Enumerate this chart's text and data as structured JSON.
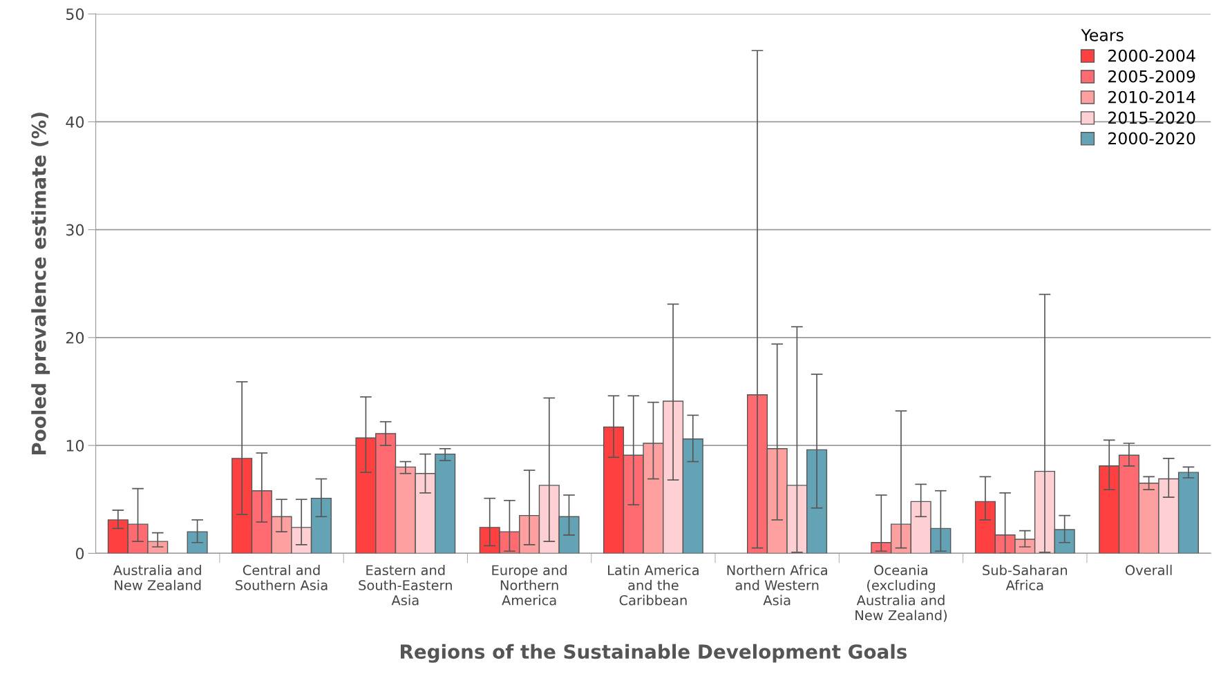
{
  "chart_data": {
    "type": "bar",
    "xlabel": "Regions of the Sustainable Development Goals",
    "ylabel": "Pooled prevalence estimate (%)",
    "legend_title": "Years",
    "legend": "top right",
    "grid": "y",
    "categories": [
      "Australia and\nNew Zealand",
      "Central and\nSouthern Asia",
      "Eastern and\nSouth-Eastern\nAsia",
      "Europe and\nNorthern\nAmerica",
      "Latin America\nand the\nCaribbean",
      "Northern Africa\nand Western\nAsia",
      "Oceania\n(excluding\nAustralia and\nNew Zealand)",
      "Sub-Saharan\nAfrica",
      "Overall"
    ],
    "ylim": [
      0,
      50
    ],
    "yticks": [
      0,
      10,
      20,
      30,
      40,
      50
    ],
    "series": [
      {
        "name": "2000-2004",
        "color": "#ff4040",
        "values": [
          3.1,
          8.8,
          10.7,
          2.4,
          11.7,
          null,
          null,
          4.8,
          8.1
        ],
        "errors": [
          [
            2.3,
            4.0
          ],
          [
            3.6,
            15.9
          ],
          [
            7.5,
            14.5
          ],
          [
            0.7,
            5.1
          ],
          [
            8.9,
            14.6
          ],
          null,
          null,
          [
            3.1,
            7.1
          ],
          [
            5.9,
            10.5
          ]
        ]
      },
      {
        "name": "2005-2009",
        "color": "#ff6b70",
        "values": [
          2.7,
          5.8,
          11.1,
          2.0,
          9.1,
          14.7,
          1.0,
          1.7,
          9.1
        ],
        "errors": [
          [
            1.1,
            6.0
          ],
          [
            2.9,
            9.3
          ],
          [
            10.0,
            12.2
          ],
          [
            0.2,
            4.9
          ],
          [
            4.5,
            14.6
          ],
          [
            0.5,
            46.6
          ],
          [
            0.2,
            5.4
          ],
          [
            0.0,
            5.6
          ],
          [
            8.1,
            10.2
          ]
        ]
      },
      {
        "name": "2010-2014",
        "color": "#ffa0a0",
        "values": [
          1.1,
          3.4,
          8.0,
          3.5,
          10.2,
          9.7,
          2.7,
          1.3,
          6.5
        ],
        "errors": [
          [
            0.6,
            1.9
          ],
          [
            2.0,
            5.0
          ],
          [
            7.4,
            8.5
          ],
          [
            0.8,
            7.7
          ],
          [
            6.9,
            14.0
          ],
          [
            3.1,
            19.4
          ],
          [
            0.5,
            13.2
          ],
          [
            0.6,
            2.1
          ],
          [
            5.9,
            7.1
          ]
        ]
      },
      {
        "name": "2015-2020",
        "color": "#ffd0d3",
        "values": [
          null,
          2.4,
          7.4,
          6.3,
          14.1,
          6.3,
          4.8,
          7.6,
          6.9
        ],
        "errors": [
          null,
          [
            0.8,
            5.0
          ],
          [
            5.6,
            9.2
          ],
          [
            1.1,
            14.4
          ],
          [
            6.8,
            23.1
          ],
          [
            0.1,
            21.0
          ],
          [
            3.4,
            6.4
          ],
          [
            0.1,
            24.0
          ],
          [
            5.2,
            8.8
          ]
        ]
      },
      {
        "name": "2000-2020",
        "color": "#63a3b5",
        "values": [
          2.0,
          5.1,
          9.2,
          3.4,
          10.6,
          9.6,
          2.3,
          2.2,
          7.5
        ],
        "errors": [
          [
            1.0,
            3.1
          ],
          [
            3.4,
            6.9
          ],
          [
            8.6,
            9.7
          ],
          [
            1.7,
            5.4
          ],
          [
            8.5,
            12.8
          ],
          [
            4.2,
            16.6
          ],
          [
            0.2,
            5.8
          ],
          [
            1.0,
            3.5
          ],
          [
            7.0,
            8.0
          ]
        ]
      }
    ]
  }
}
